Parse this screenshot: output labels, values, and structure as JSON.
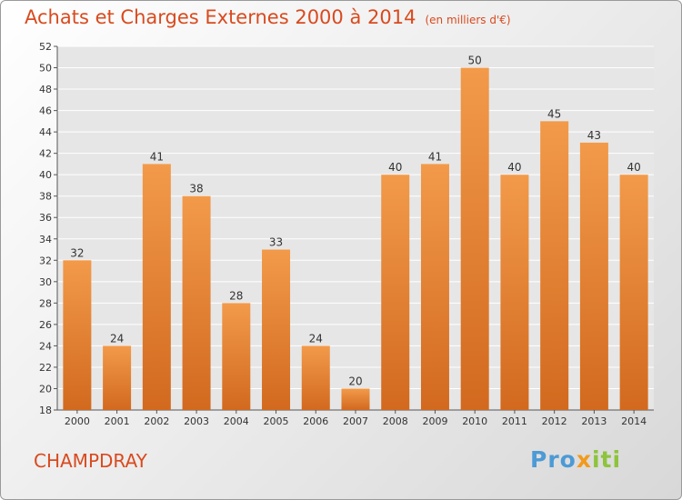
{
  "header": {
    "title": "Achats et Charges Externes 2000 à 2014",
    "unit": "(en milliers d'€)"
  },
  "footer": {
    "commune": "CHAMPDRAY",
    "logo_parts": [
      "Pro",
      "x",
      "iti"
    ],
    "colors": {
      "blue": "#4c9ad6",
      "orange": "#f29a1c",
      "green": "#8dc43c"
    }
  },
  "chart_data": {
    "type": "bar",
    "title": "Achats et Charges Externes 2000 à 2014",
    "unit": "(en milliers d'€)",
    "categories": [
      "2000",
      "2001",
      "2002",
      "2003",
      "2004",
      "2005",
      "2006",
      "2007",
      "2008",
      "2009",
      "2010",
      "2011",
      "2012",
      "2013",
      "2014"
    ],
    "values": [
      32,
      24,
      41,
      38,
      28,
      33,
      24,
      20,
      40,
      41,
      50,
      40,
      45,
      43,
      40
    ],
    "ylim": [
      18,
      52
    ],
    "yticks": [
      18,
      20,
      22,
      24,
      26,
      28,
      30,
      32,
      34,
      36,
      38,
      40,
      42,
      44,
      46,
      48,
      50,
      52
    ],
    "grid": true,
    "bar_color": "#f29a4a",
    "bar_color_dark": "#d2691e"
  }
}
